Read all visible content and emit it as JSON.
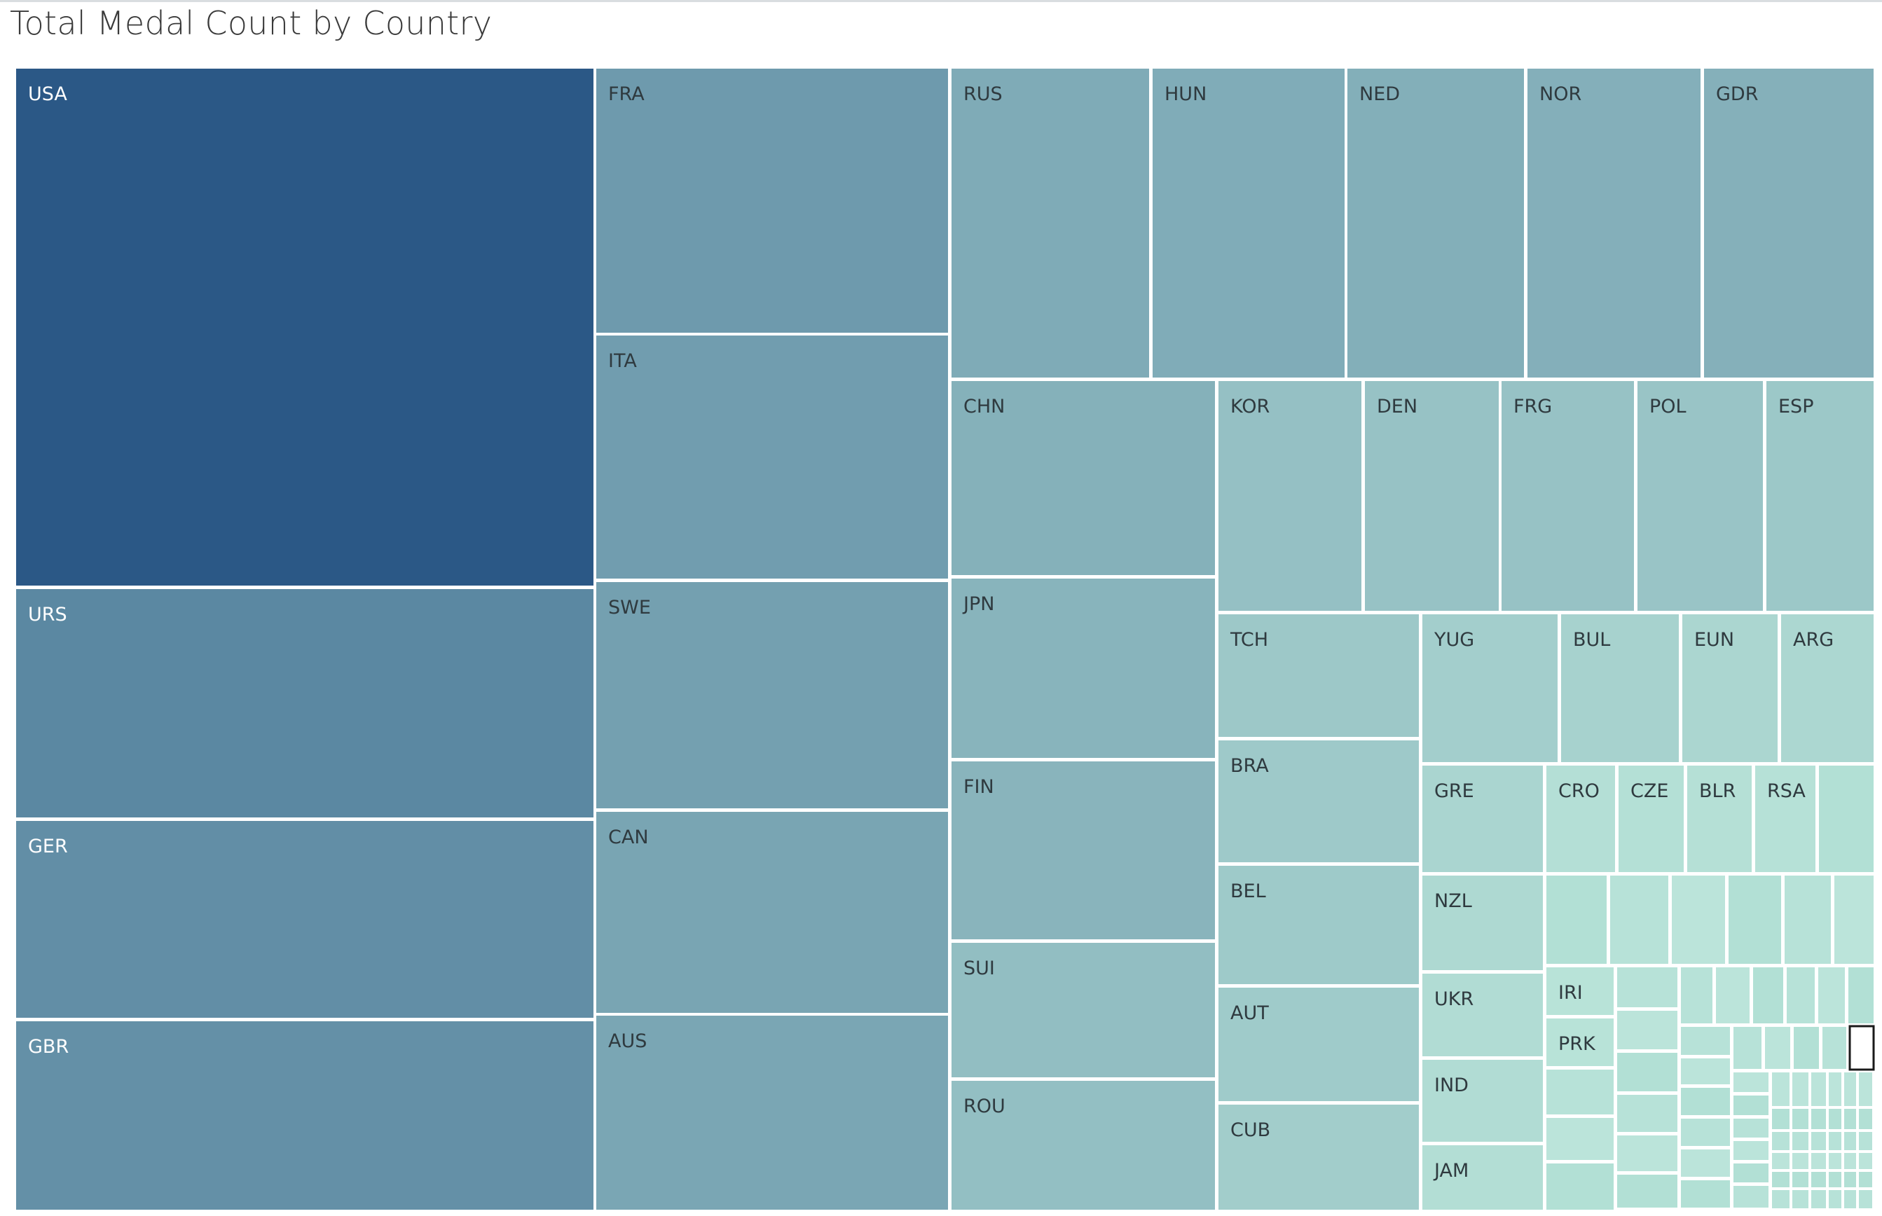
{
  "chart_data": {
    "type": "treemap",
    "title": "Total Medal Count by Country",
    "measure": "Total medal count",
    "color_scale": {
      "low": "#b8e3d8",
      "high": "#2b5886"
    },
    "highlight_color": "#1a1a1a",
    "nodes": [
      {
        "label": "USA",
        "value": 2638
      },
      {
        "label": "URS",
        "value": 1010
      },
      {
        "label": "GER",
        "value": 870
      },
      {
        "label": "GBR",
        "value": 830
      },
      {
        "label": "FRA",
        "value": 670
      },
      {
        "label": "ITA",
        "value": 620
      },
      {
        "label": "SWE",
        "value": 580
      },
      {
        "label": "CAN",
        "value": 510
      },
      {
        "label": "AUS",
        "value": 490
      },
      {
        "label": "RUS",
        "value": 436
      },
      {
        "label": "HUN",
        "value": 423
      },
      {
        "label": "NED",
        "value": 395
      },
      {
        "label": "NOR",
        "value": 386
      },
      {
        "label": "GDR",
        "value": 376
      },
      {
        "label": "CHN",
        "value": 370
      },
      {
        "label": "JPN",
        "value": 340
      },
      {
        "label": "FIN",
        "value": 337
      },
      {
        "label": "SUI",
        "value": 256
      },
      {
        "label": "ROU",
        "value": 246
      },
      {
        "label": "KOR",
        "value": 236
      },
      {
        "label": "DEN",
        "value": 221
      },
      {
        "label": "FRG",
        "value": 220
      },
      {
        "label": "POL",
        "value": 207
      },
      {
        "label": "ESP",
        "value": 185
      },
      {
        "label": "TCH",
        "value": 180
      },
      {
        "label": "BRA",
        "value": 177
      },
      {
        "label": "BEL",
        "value": 173
      },
      {
        "label": "AUT",
        "value": 167
      },
      {
        "label": "CUB",
        "value": 153
      },
      {
        "label": "YUG",
        "value": 145
      },
      {
        "label": "BUL",
        "value": 126
      },
      {
        "label": "EUN",
        "value": 105
      },
      {
        "label": "ARG",
        "value": 100
      },
      {
        "label": "GRE",
        "value": 110
      },
      {
        "label": "CRO",
        "value": 64
      },
      {
        "label": "CZE",
        "value": 62
      },
      {
        "label": "BLR",
        "value": 60
      },
      {
        "label": "RSA",
        "value": 54
      },
      {
        "label": "NZL",
        "value": 90
      },
      {
        "label": "UKR",
        "value": 79
      },
      {
        "label": "IND",
        "value": 79
      },
      {
        "label": "JAM",
        "value": 69
      },
      {
        "label": "IRI",
        "value": 42
      },
      {
        "label": "PRK",
        "value": 41
      }
    ],
    "unlabeled_small_tiles": true,
    "legend": "none"
  }
}
